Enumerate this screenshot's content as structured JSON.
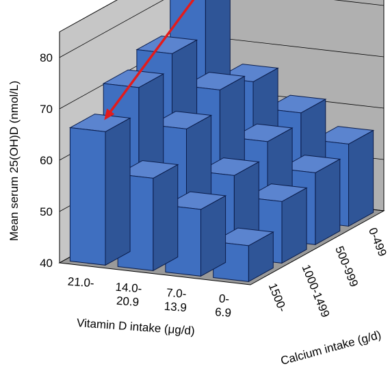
{
  "chart_data": {
    "type": "bar3d",
    "title": "",
    "ylabel": "Mean serum 25(OH)D (nmol/L)",
    "xlabel": "Vitamin D intake (μg/d)",
    "zlabel": "Calcium intake (g/d)",
    "ylim": [
      40,
      85
    ],
    "yticks": [
      40,
      50,
      60,
      70,
      80
    ],
    "grid": true,
    "x_categories": [
      {
        "line1": "21.0-",
        "line2": ""
      },
      {
        "line1": "14.0-",
        "line2": "20.9"
      },
      {
        "line1": "7.0-",
        "line2": "13.9"
      },
      {
        "line1": "0-",
        "line2": "6.9"
      }
    ],
    "z_categories": [
      "1500-",
      "1000-1499",
      "500-999",
      "0-499"
    ],
    "values": [
      [
        66,
        58,
        53,
        47
      ],
      [
        71,
        64,
        56,
        52
      ],
      [
        74,
        68,
        59,
        54
      ],
      [
        82,
        66,
        61,
        56
      ]
    ],
    "bar_color": "#3f6fc0",
    "trend_arrow": {
      "color": "#e31b1b",
      "from": {
        "x": 0,
        "z": 3
      },
      "to": {
        "x": 0,
        "z": 0
      }
    }
  }
}
